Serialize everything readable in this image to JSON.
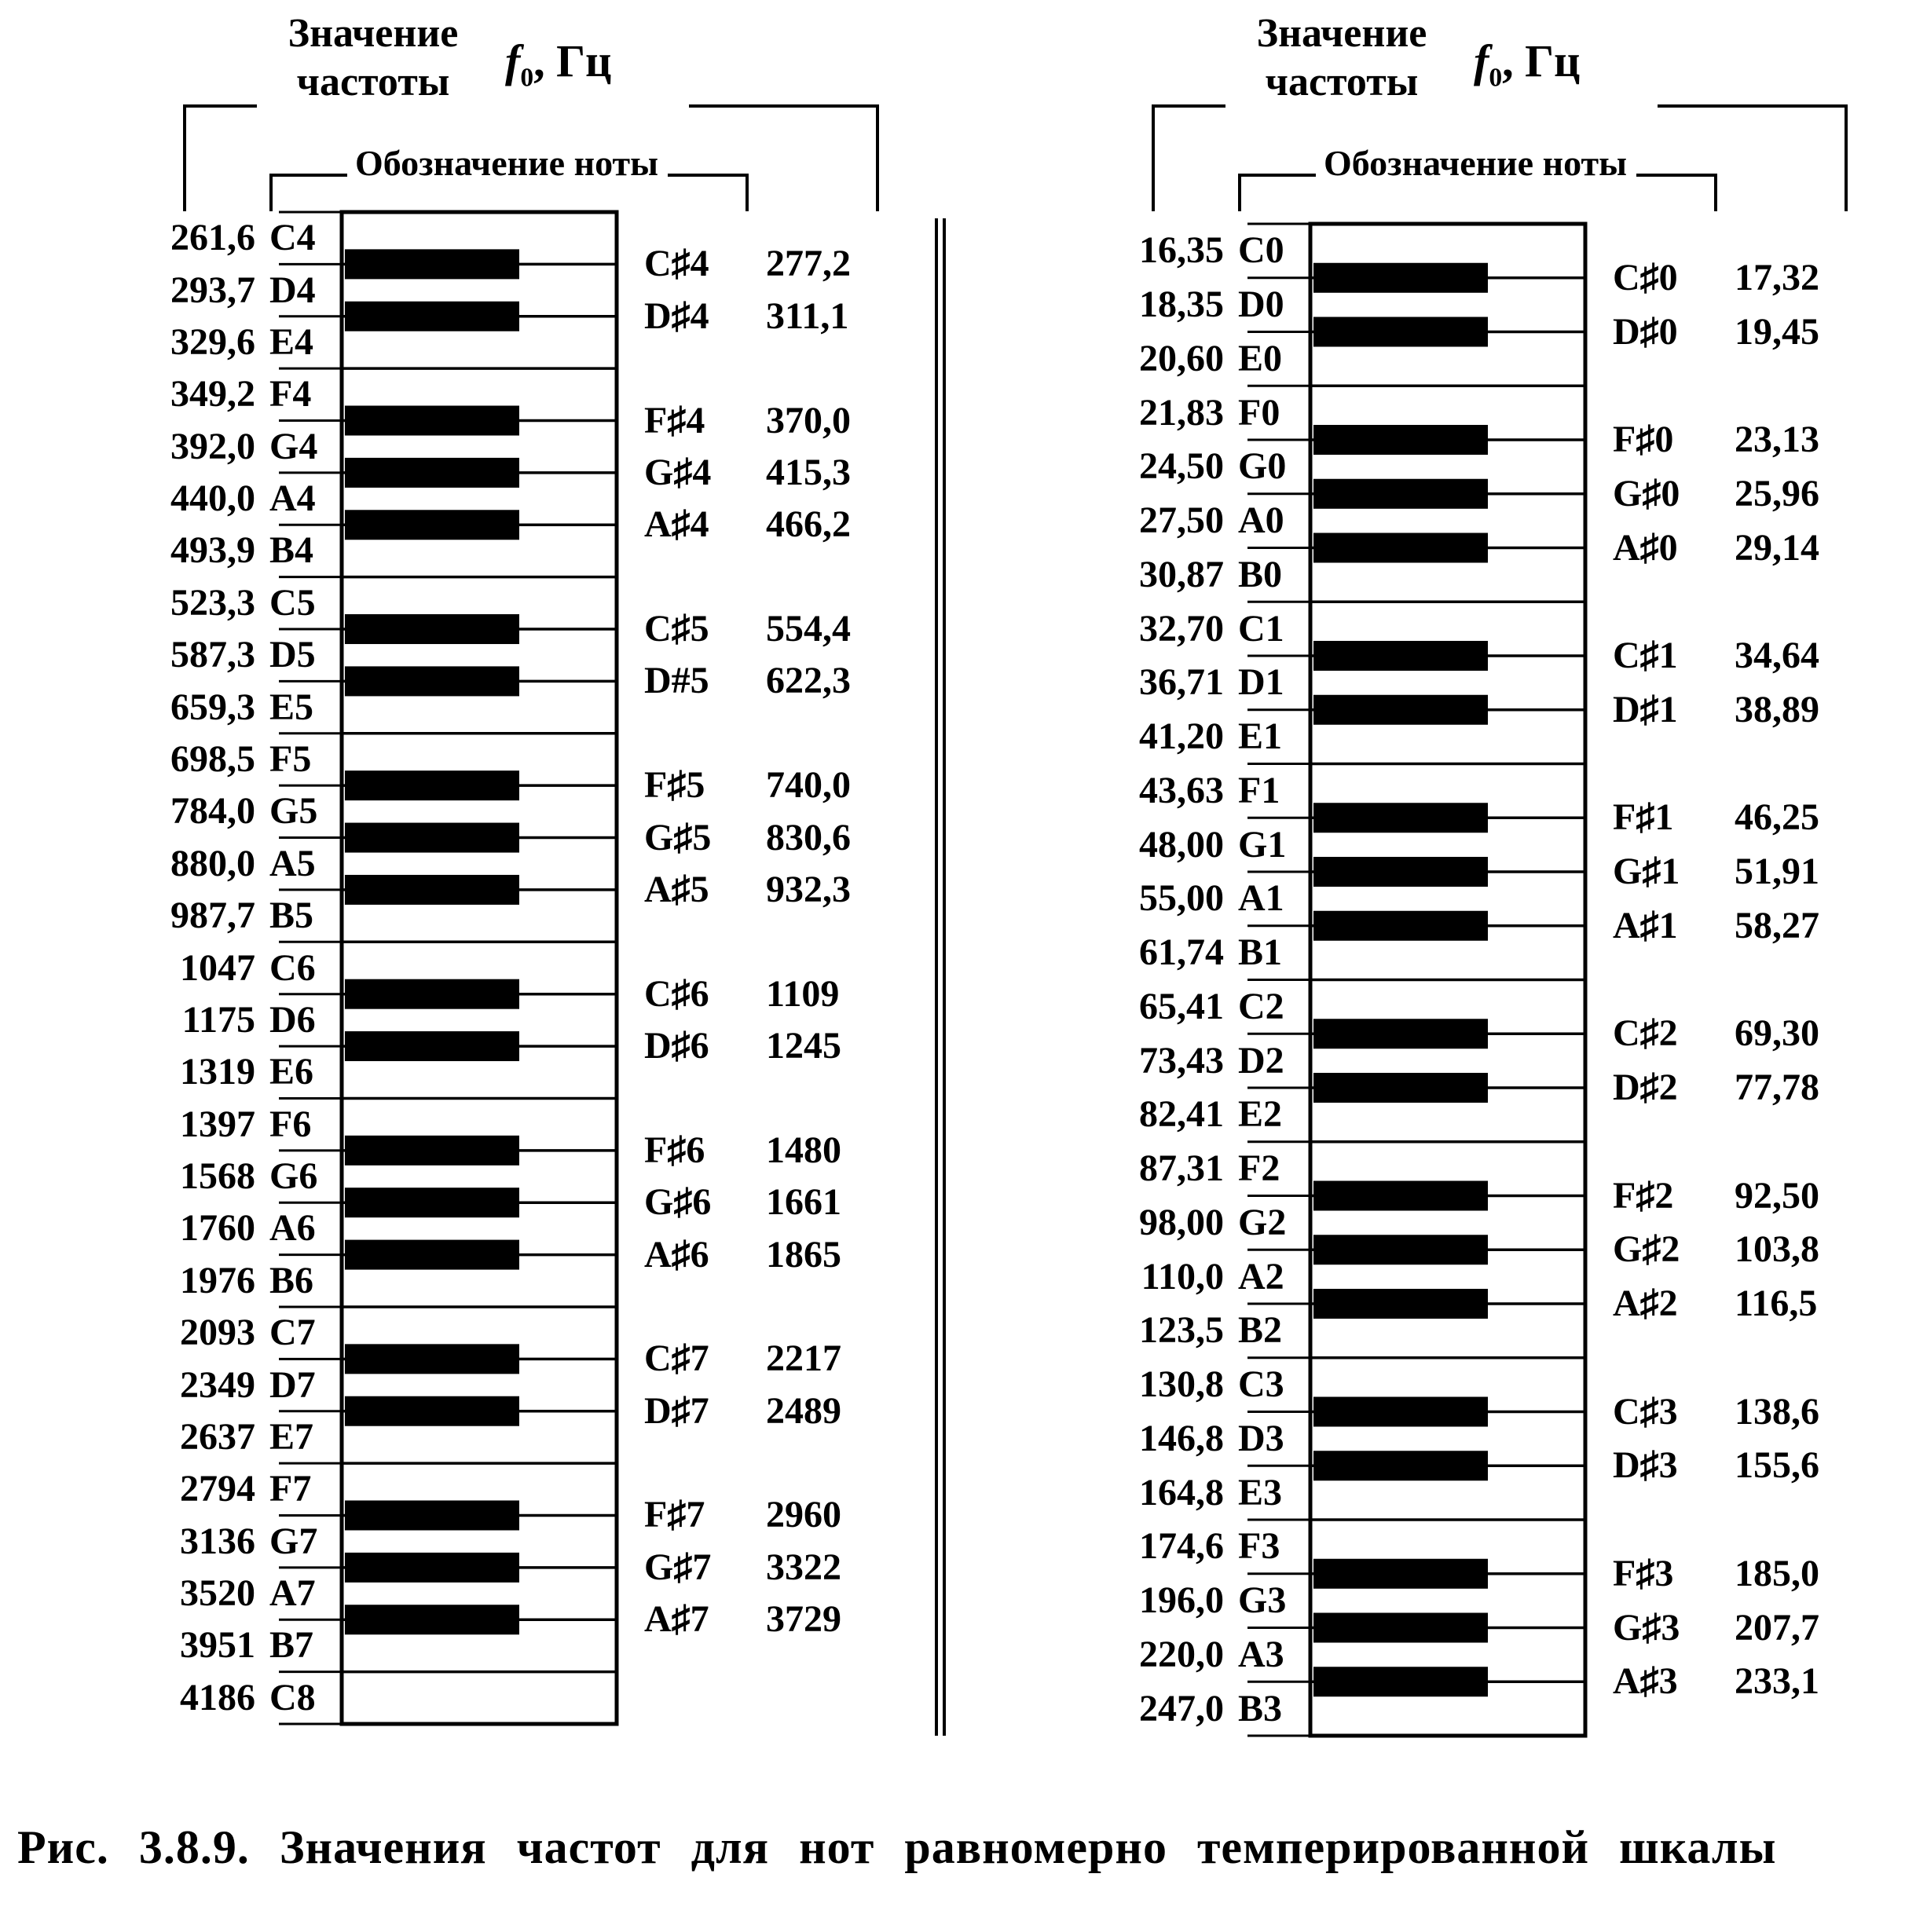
{
  "headers": {
    "value_line1": "Значение",
    "value_line2": "частоты",
    "freq_symbol": "f",
    "freq_sub": "0",
    "freq_unit": ", Гц",
    "note_label": "Обозначение ноты"
  },
  "caption": "Рис. 3.8.9. Значения частот для нот равномерно темперированной шкалы",
  "panels": [
    {
      "white_keys": [
        {
          "freq": "261,6",
          "note": "C4"
        },
        {
          "freq": "293,7",
          "note": "D4"
        },
        {
          "freq": "329,6",
          "note": "E4"
        },
        {
          "freq": "349,2",
          "note": "F4"
        },
        {
          "freq": "392,0",
          "note": "G4"
        },
        {
          "freq": "440,0",
          "note": "A4"
        },
        {
          "freq": "493,9",
          "note": "B4"
        },
        {
          "freq": "523,3",
          "note": "C5"
        },
        {
          "freq": "587,3",
          "note": "D5"
        },
        {
          "freq": "659,3",
          "note": "E5"
        },
        {
          "freq": "698,5",
          "note": "F5"
        },
        {
          "freq": "784,0",
          "note": "G5"
        },
        {
          "freq": "880,0",
          "note": "A5"
        },
        {
          "freq": "987,7",
          "note": "B5"
        },
        {
          "freq": "1047",
          "note": "C6"
        },
        {
          "freq": "1175",
          "note": "D6"
        },
        {
          "freq": "1319",
          "note": "E6"
        },
        {
          "freq": "1397",
          "note": "F6"
        },
        {
          "freq": "1568",
          "note": "G6"
        },
        {
          "freq": "1760",
          "note": "A6"
        },
        {
          "freq": "1976",
          "note": "B6"
        },
        {
          "freq": "2093",
          "note": "C7"
        },
        {
          "freq": "2349",
          "note": "D7"
        },
        {
          "freq": "2637",
          "note": "E7"
        },
        {
          "freq": "2794",
          "note": "F7"
        },
        {
          "freq": "3136",
          "note": "G7"
        },
        {
          "freq": "3520",
          "note": "A7"
        },
        {
          "freq": "3951",
          "note": "B7"
        },
        {
          "freq": "4186",
          "note": "C8"
        }
      ],
      "black_keys": [
        {
          "note": "C♯4",
          "freq": "277,2"
        },
        {
          "note": "D♯4",
          "freq": "311,1"
        },
        {
          "note": "F♯4",
          "freq": "370,0"
        },
        {
          "note": "G♯4",
          "freq": "415,3"
        },
        {
          "note": "A♯4",
          "freq": "466,2"
        },
        {
          "note": "C♯5",
          "freq": "554,4"
        },
        {
          "note": "D#5",
          "freq": "622,3"
        },
        {
          "note": "F♯5",
          "freq": "740,0"
        },
        {
          "note": "G♯5",
          "freq": "830,6"
        },
        {
          "note": "A♯5",
          "freq": "932,3"
        },
        {
          "note": "C♯6",
          "freq": "1109"
        },
        {
          "note": "D♯6",
          "freq": "1245"
        },
        {
          "note": "F♯6",
          "freq": "1480"
        },
        {
          "note": "G♯6",
          "freq": "1661"
        },
        {
          "note": "A♯6",
          "freq": "1865"
        },
        {
          "note": "C♯7",
          "freq": "2217"
        },
        {
          "note": "D♯7",
          "freq": "2489"
        },
        {
          "note": "F♯7",
          "freq": "2960"
        },
        {
          "note": "G♯7",
          "freq": "3322"
        },
        {
          "note": "A♯7",
          "freq": "3729"
        }
      ]
    },
    {
      "white_keys": [
        {
          "freq": "16,35",
          "note": "C0"
        },
        {
          "freq": "18,35",
          "note": "D0"
        },
        {
          "freq": "20,60",
          "note": "E0"
        },
        {
          "freq": "21,83",
          "note": "F0"
        },
        {
          "freq": "24,50",
          "note": "G0"
        },
        {
          "freq": "27,50",
          "note": "A0"
        },
        {
          "freq": "30,87",
          "note": "B0"
        },
        {
          "freq": "32,70",
          "note": "C1"
        },
        {
          "freq": "36,71",
          "note": "D1"
        },
        {
          "freq": "41,20",
          "note": "E1"
        },
        {
          "freq": "43,63",
          "note": "F1"
        },
        {
          "freq": "48,00",
          "note": "G1"
        },
        {
          "freq": "55,00",
          "note": "A1"
        },
        {
          "freq": "61,74",
          "note": "B1"
        },
        {
          "freq": "65,41",
          "note": "C2"
        },
        {
          "freq": "73,43",
          "note": "D2"
        },
        {
          "freq": "82,41",
          "note": "E2"
        },
        {
          "freq": "87,31",
          "note": "F2"
        },
        {
          "freq": "98,00",
          "note": "G2"
        },
        {
          "freq": "110,0",
          "note": "A2"
        },
        {
          "freq": "123,5",
          "note": "B2"
        },
        {
          "freq": "130,8",
          "note": "C3"
        },
        {
          "freq": "146,8",
          "note": "D3"
        },
        {
          "freq": "164,8",
          "note": "E3"
        },
        {
          "freq": "174,6",
          "note": "F3"
        },
        {
          "freq": "196,0",
          "note": "G3"
        },
        {
          "freq": "220,0",
          "note": "A3"
        },
        {
          "freq": "247,0",
          "note": "B3"
        }
      ],
      "black_keys": [
        {
          "note": "C♯0",
          "freq": "17,32"
        },
        {
          "note": "D♯0",
          "freq": "19,45"
        },
        {
          "note": "F♯0",
          "freq": "23,13"
        },
        {
          "note": "G♯0",
          "freq": "25,96"
        },
        {
          "note": "A♯0",
          "freq": "29,14"
        },
        {
          "note": "C♯1",
          "freq": "34,64"
        },
        {
          "note": "D♯1",
          "freq": "38,89"
        },
        {
          "note": "F♯1",
          "freq": "46,25"
        },
        {
          "note": "G♯1",
          "freq": "51,91"
        },
        {
          "note": "A♯1",
          "freq": "58,27"
        },
        {
          "note": "C♯2",
          "freq": "69,30"
        },
        {
          "note": "D♯2",
          "freq": "77,78"
        },
        {
          "note": "F♯2",
          "freq": "92,50"
        },
        {
          "note": "G♯2",
          "freq": "103,8"
        },
        {
          "note": "A♯2",
          "freq": "116,5"
        },
        {
          "note": "C♯3",
          "freq": "138,6"
        },
        {
          "note": "D♯3",
          "freq": "155,6"
        },
        {
          "note": "F♯3",
          "freq": "185,0"
        },
        {
          "note": "G♯3",
          "freq": "207,7"
        },
        {
          "note": "A♯3",
          "freq": "233,1"
        }
      ]
    }
  ]
}
